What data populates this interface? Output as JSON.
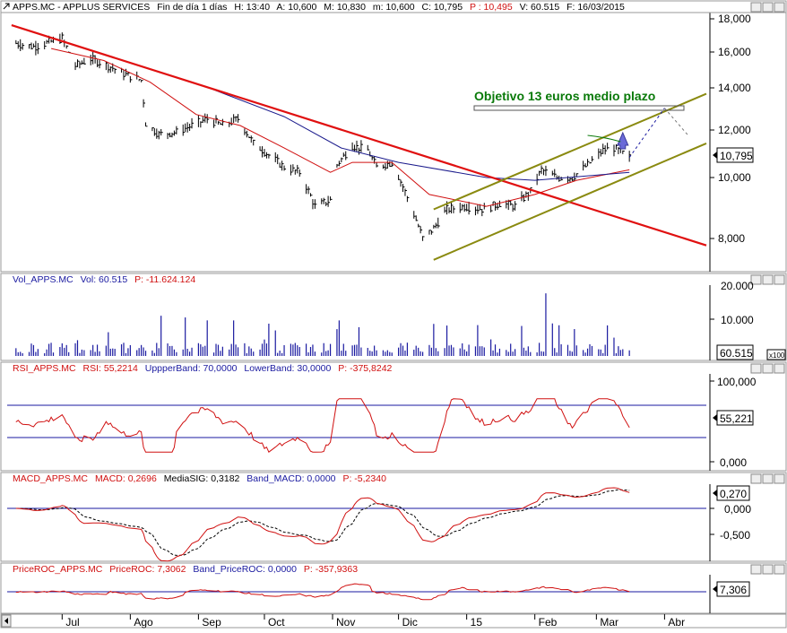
{
  "panels": {
    "price": {
      "header": {
        "symbol": "APPS.MC - APPLUS SERVICES",
        "period": "Fin de día 1 días",
        "h": "H: 13:40",
        "a": "A: 10,600",
        "max": "M: 10,830",
        "min": "m: 10,600",
        "c": "C: 10,795",
        "p": "P : 10,495",
        "v": "V: 60.515",
        "f": "F: 16/03/2015"
      },
      "y_ticks": [
        "18,000",
        "16,000",
        "14,000",
        "12,000",
        "10,000",
        "8,000"
      ],
      "last_value": "10,795",
      "annotation": "Objetivo 13 euros medio plazo"
    },
    "volume": {
      "header": {
        "name": "Vol_APPS.MC",
        "v": "Vol: 60.515",
        "p": "P: -11.624.124"
      },
      "y_ticks": [
        "20.000",
        "10.000"
      ],
      "last_value": "60.515",
      "scale_note": "x100"
    },
    "rsi": {
      "header": {
        "name": "RSI_APPS.MC",
        "v": "RSI: 55,2214",
        "up": "UppperBand: 70,0000",
        "low": "LowerBand: 30,0000",
        "p": "P: -375,8242"
      },
      "y_ticks": [
        "100,000",
        "0,000"
      ],
      "last_value": "55,221"
    },
    "macd": {
      "header": {
        "name": "MACD_APPS.MC",
        "v": "MACD: 0,2696",
        "sig": "MediaSIG: 0,3182",
        "band": "Band_MACD: 0,0000",
        "p": "P: -5,2340"
      },
      "y_ticks": [
        "0,000",
        "-0,500"
      ],
      "last_value": "0,270"
    },
    "roc": {
      "header": {
        "name": "PriceROC_APPS.MC",
        "v": "PriceROC: 7,3062",
        "band": "Band_PriceROC: 0,0000",
        "p": "P: -357,9363"
      },
      "last_value": "7,306"
    }
  },
  "x_labels": [
    "Jul",
    "Ago",
    "Sep",
    "Oct",
    "Nov",
    "Dic",
    "15",
    "Feb",
    "Mar",
    "Abr"
  ],
  "colors": {
    "price": "#000000",
    "ma_fast": "#d01010",
    "ma_slow": "#1a1a8c",
    "downtrend": "#e01010",
    "channel": "#8a8a10",
    "annotation_text": "#0a7a0a",
    "indicator_line": "#d01010",
    "band_line": "#1a1aa0",
    "volume_bars": "#1a1aa0"
  },
  "chart_data": [
    {
      "type": "line",
      "panel": "price",
      "x_range": [
        "2014-06-06",
        "2015-04-20"
      ],
      "ylim": [
        7000,
        18400
      ],
      "log_scale": true,
      "series": [],
      "close_points": [
        [
          "2014-06-10",
          16500
        ],
        [
          "2014-06-18",
          16300
        ],
        [
          "2014-06-26",
          16600
        ],
        [
          "2014-07-01",
          16800
        ],
        [
          "2014-07-07",
          15200
        ],
        [
          "2014-07-14",
          15600
        ],
        [
          "2014-07-22",
          15200
        ],
        [
          "2014-07-30",
          14700
        ],
        [
          "2014-08-06",
          14400
        ],
        [
          "2014-08-08",
          12300
        ],
        [
          "2014-08-14",
          11800
        ],
        [
          "2014-08-22",
          11900
        ],
        [
          "2014-08-29",
          12200
        ],
        [
          "2014-09-05",
          12500
        ],
        [
          "2014-09-12",
          12200
        ],
        [
          "2014-09-19",
          12500
        ],
        [
          "2014-09-26",
          11400
        ],
        [
          "2014-10-03",
          10900
        ],
        [
          "2014-10-10",
          10400
        ],
        [
          "2014-10-17",
          10200
        ],
        [
          "2014-10-24",
          9000
        ],
        [
          "2014-10-31",
          9200
        ],
        [
          "2014-11-03",
          10500
        ],
        [
          "2014-11-10",
          11300
        ],
        [
          "2014-11-17",
          11100
        ],
        [
          "2014-11-21",
          10400
        ],
        [
          "2014-11-28",
          10600
        ],
        [
          "2014-12-05",
          9300
        ],
        [
          "2014-12-12",
          8000
        ],
        [
          "2014-12-17",
          8300
        ],
        [
          "2014-12-23",
          8900
        ],
        [
          "2014-12-31",
          9000
        ],
        [
          "2015-01-09",
          8900
        ],
        [
          "2015-01-16",
          9100
        ],
        [
          "2015-01-23",
          9000
        ],
        [
          "2015-01-30",
          9500
        ],
        [
          "2015-02-04",
          10300
        ],
        [
          "2015-02-11",
          10000
        ],
        [
          "2015-02-18",
          10000
        ],
        [
          "2015-02-25",
          10500
        ],
        [
          "2015-03-04",
          11100
        ],
        [
          "2015-03-09",
          11200
        ],
        [
          "2015-03-16",
          10795
        ]
      ],
      "ma_fast": [
        [
          "2014-06-26",
          16200
        ],
        [
          "2014-07-20",
          15500
        ],
        [
          "2014-08-10",
          14300
        ],
        [
          "2014-08-31",
          12700
        ],
        [
          "2014-09-20",
          12200
        ],
        [
          "2014-10-10",
          11200
        ],
        [
          "2014-10-31",
          10200
        ],
        [
          "2014-11-10",
          10600
        ],
        [
          "2014-11-28",
          10600
        ],
        [
          "2014-12-15",
          9400
        ],
        [
          "2015-01-10",
          9000
        ],
        [
          "2015-02-01",
          9400
        ],
        [
          "2015-02-20",
          9900
        ],
        [
          "2015-03-16",
          10300
        ]
      ],
      "ma_slow": [
        [
          "2014-09-08",
          13900
        ],
        [
          "2014-10-10",
          12600
        ],
        [
          "2014-11-05",
          11200
        ],
        [
          "2014-12-01",
          10600
        ],
        [
          "2015-01-10",
          10000
        ],
        [
          "2015-02-01",
          9900
        ],
        [
          "2015-03-16",
          10200
        ]
      ],
      "lines": {
        "downtrend": [
          [
            "2014-06-08",
            17600
          ],
          [
            "2015-04-20",
            7800
          ]
        ],
        "channel_upper": [
          [
            "2014-12-17",
            8900
          ],
          [
            "2015-04-20",
            13700
          ]
        ],
        "channel_lower": [
          [
            "2014-12-17",
            7400
          ],
          [
            "2015-04-20",
            11400
          ]
        ],
        "projection": [
          [
            "2015-03-16",
            10800
          ],
          [
            "2015-04-01",
            13000
          ]
        ]
      }
    },
    {
      "type": "bar",
      "panel": "volume",
      "ylim": [
        0,
        20000
      ],
      "unit_note": "x100",
      "last": 60515
    },
    {
      "type": "line",
      "panel": "rsi",
      "ylim": [
        0,
        100
      ],
      "bands": [
        70,
        30
      ],
      "last": 55.2214
    },
    {
      "type": "line",
      "panel": "macd",
      "ylim": [
        -0.8,
        0.35
      ],
      "band": 0,
      "last_macd": 0.2696,
      "last_signal": 0.3182
    },
    {
      "type": "line",
      "panel": "roc",
      "band": 0,
      "last": 7.3062
    }
  ]
}
